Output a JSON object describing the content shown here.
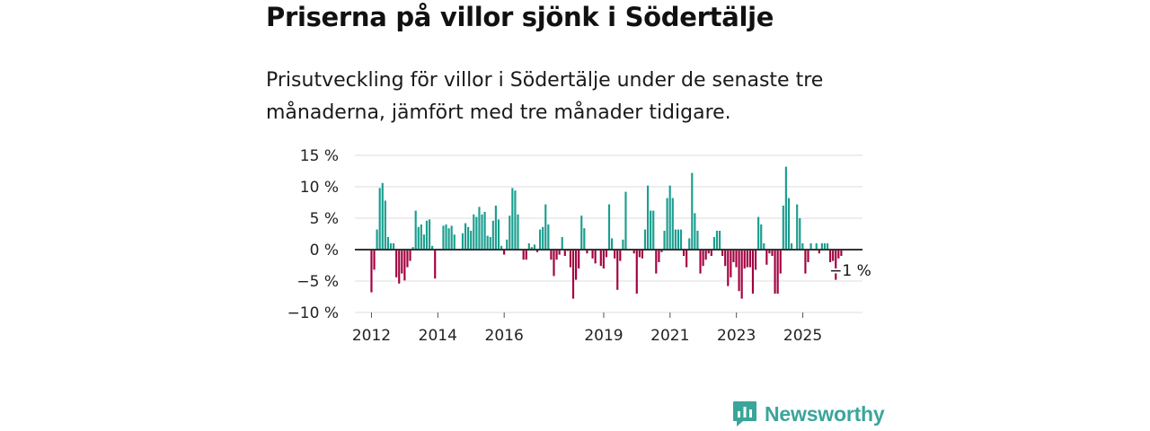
{
  "title": "Priserna på villor sjönk i Södertälje",
  "subtitle": "Prisutveckling för villor i Södertälje under de senaste tre månaderna, jämfört med tre månader tidigare.",
  "brand": {
    "name": "Newsworthy",
    "color": "#3aa59a"
  },
  "colors": {
    "positive": "#1a9e8f",
    "negative": "#a3003f",
    "grid": "#dddddd",
    "zero": "#333333"
  },
  "chart_data": {
    "type": "bar",
    "title": "Priserna på villor sjönk i Södertälje",
    "xlabel": "",
    "ylabel": "",
    "ylim": [
      -10,
      15
    ],
    "yticks": [
      15,
      10,
      5,
      0,
      -5,
      -10
    ],
    "ytick_labels": [
      "15 %",
      "10 %",
      "5 %",
      "0 %",
      "−5 %",
      "−10 %"
    ],
    "xlim": [
      2011.5,
      2026.8
    ],
    "xticks": [
      2012,
      2014,
      2016,
      2019,
      2021,
      2023,
      2025
    ],
    "xtick_labels": [
      "2012",
      "2014",
      "2016",
      "2019",
      "2021",
      "2023",
      "2025"
    ],
    "annotation": {
      "text": "−1 %",
      "x": 2026.0,
      "y": -1
    },
    "start": 2012.0,
    "step": 0.0833,
    "values": [
      -6.8,
      -3.2,
      3.2,
      9.8,
      10.6,
      7.8,
      2.0,
      1.0,
      1.0,
      -4.4,
      -5.4,
      -3.8,
      -4.9,
      -2.8,
      -1.8,
      0.4,
      6.2,
      3.6,
      4.0,
      2.4,
      4.6,
      4.8,
      0.6,
      -4.6,
      0.0,
      0.0,
      3.8,
      4.0,
      3.4,
      3.8,
      2.4,
      0.0,
      0.0,
      2.6,
      4.2,
      3.6,
      3.0,
      5.6,
      5.2,
      6.8,
      5.6,
      6.0,
      2.2,
      2.0,
      4.6,
      7.0,
      4.8,
      0.6,
      -0.8,
      1.6,
      5.4,
      9.8,
      9.4,
      5.6,
      0.0,
      -1.6,
      -1.6,
      1.0,
      0.4,
      0.8,
      -0.4,
      3.2,
      3.6,
      7.2,
      4.0,
      -1.6,
      -4.2,
      -1.6,
      -0.8,
      2.0,
      -1.0,
      -0.2,
      -2.8,
      -7.8,
      -4.8,
      -3.0,
      5.4,
      3.4,
      -0.6,
      0.0,
      -1.4,
      -2.2,
      0.0,
      -2.6,
      -3.0,
      -1.2,
      7.2,
      1.8,
      -1.4,
      -6.4,
      -1.8,
      1.6,
      9.2,
      0.0,
      0.0,
      -0.6,
      -7.0,
      -1.2,
      -1.4,
      3.2,
      10.2,
      6.2,
      6.2,
      -3.8,
      -2.0,
      -0.4,
      3.0,
      8.2,
      10.2,
      8.2,
      3.2,
      3.2,
      3.2,
      -1.0,
      -2.8,
      1.8,
      12.2,
      5.8,
      3.0,
      -3.8,
      -2.6,
      -1.6,
      -0.6,
      -1.0,
      2.0,
      3.0,
      3.0,
      -1.0,
      -2.6,
      -5.8,
      -4.4,
      -2.0,
      -2.8,
      -6.6,
      -7.8,
      -3.0,
      -2.8,
      -2.8,
      -7.0,
      -3.2,
      5.2,
      4.0,
      1.0,
      -2.4,
      -0.6,
      -1.0,
      -7.0,
      -7.0,
      -3.8,
      7.0,
      13.2,
      8.2,
      1.0,
      0.0,
      7.2,
      5.0,
      1.0,
      -3.8,
      -2.0,
      1.0,
      0.0,
      1.0,
      -0.6,
      1.0,
      1.0,
      1.0,
      -2.0,
      -1.8,
      -4.8,
      -1.4,
      -1.0
    ]
  }
}
